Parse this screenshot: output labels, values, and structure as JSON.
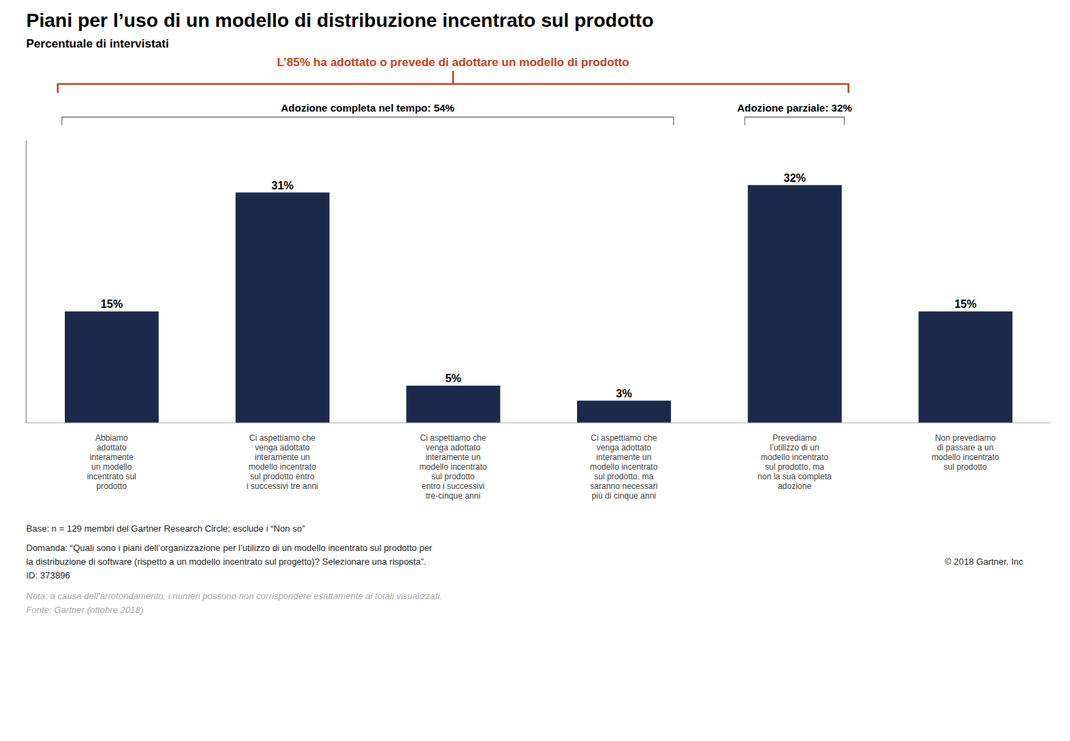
{
  "chart_data": {
    "type": "bar",
    "title": "Piani per l’uso di un modello di distribuzione incentrato sul prodotto",
    "subtitle": "Percentuale di intervistati",
    "categories": [
      "Abbiamo\nadottato\ninteramente\nun modello\nincentrato sul\nprodotto",
      "Ci aspettiamo che\nvenga adottato\ninteramente un\nmodello incentrato\nsul prodotto entro\ni successivi tre anni",
      "Ci aspettiamo che\nvenga adottato\ninteramente un\nmodello incentrato\nsul prodotto\nentro i successivi\ntre-cinque anni",
      "Ci aspettiamo che\nvenga adottato\ninteramente un\nmodello incentrato\nsul prodotto, ma\nsaranno necessari\npiù di cinque anni",
      "Prevediamo\nl’utilizzo di un\nmodello incentrato\nsul prodotto, ma\nnon la sua completa\nadozione",
      "Non prevediamo\ndi passare a un\nmodello incentrato\nsul prodotto"
    ],
    "values": [
      15,
      31,
      5,
      3,
      32,
      15
    ],
    "value_labels": [
      "15%",
      "31%",
      "5%",
      "3%",
      "32%",
      "15%"
    ],
    "data_labels": true,
    "color": "#1b2a4a",
    "ylim": [
      0,
      38
    ],
    "tick_labels": "x",
    "grid": false,
    "annotations": [
      {
        "text": "L’85% ha adottato o prevede di adottare un modello di prodotto",
        "color": "#c8401a"
      },
      {
        "text": "Adozione completa nel tempo: 54%",
        "color": "#999999"
      },
      {
        "text": "Adozione parziale: 32%",
        "color": "#999999"
      }
    ],
    "footer": [
      "Base: n = 129 membri del Gartner Research Circle; esclude i “Non so”",
      "Domanda: “Quali sono i piani dell’organizzazione per l’utilizzo di un modello incentrato sul prodotto per",
      "la distribuzione di software (rispetto a un modello incentrato sul progetto)? Selezionare una risposta”.",
      "ID: 373896"
    ],
    "copyright": "© 2018 Gartner, Inc",
    "notes": [
      "Nota: a causa dell’arrotondamento, i numeri possono non corrispondere esattamente ai totali visualizzati.",
      "Fonte: Gartner (ottobre 2018)"
    ]
  }
}
